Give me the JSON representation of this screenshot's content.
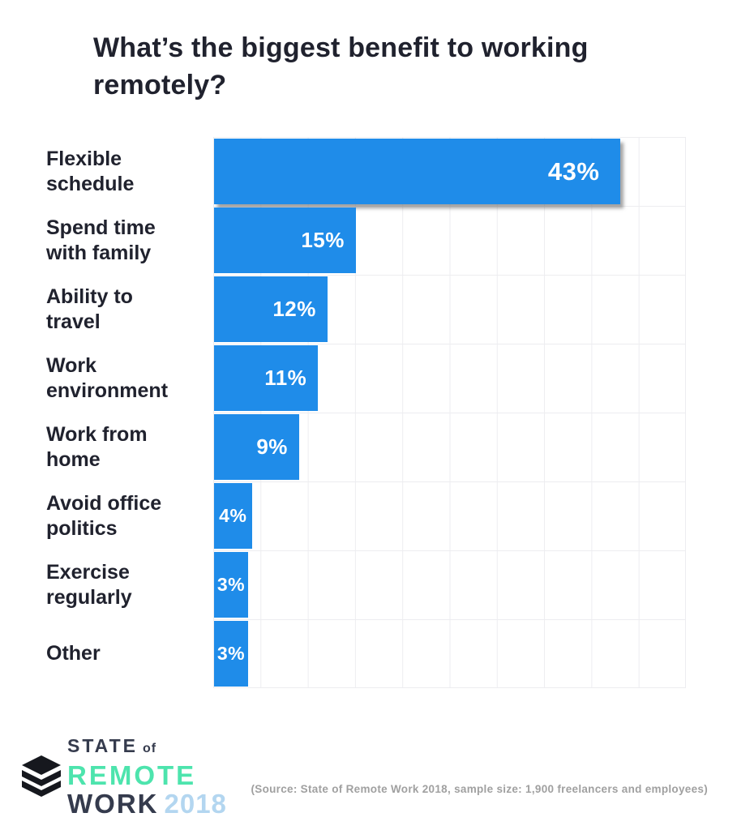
{
  "title": "What’s the biggest benefit to working remotely?",
  "chart_data": {
    "type": "bar",
    "orientation": "horizontal",
    "title": "What’s the biggest benefit to working remotely?",
    "categories": [
      "Flexible schedule",
      "Spend time with family",
      "Ability to travel",
      "Work environment",
      "Work from home",
      "Avoid office politics",
      "Exercise regularly",
      "Other"
    ],
    "category_lines": [
      [
        "Flexible",
        "schedule"
      ],
      [
        "Spend time",
        "with family"
      ],
      [
        "Ability to",
        "travel"
      ],
      [
        "Work",
        "environment"
      ],
      [
        "Work from",
        "home"
      ],
      [
        "Avoid office",
        "politics"
      ],
      [
        "Exercise",
        "regularly"
      ],
      [
        "Other"
      ]
    ],
    "values": [
      43,
      15,
      12,
      11,
      9,
      4,
      3,
      3
    ],
    "value_labels": [
      "43%",
      "15%",
      "12%",
      "11%",
      "9%",
      "4%",
      "3%",
      "3%"
    ],
    "unit": "%",
    "xlim": [
      0,
      50
    ],
    "grid_step": 5,
    "grid": true,
    "legend": false,
    "highlight_first_bar_shadow": true,
    "bar_color": "#1f8ce9"
  },
  "footer": {
    "logo": {
      "icon": "buffer-layers-icon",
      "state": "STATE",
      "of": "of",
      "remote": "REMOTE",
      "work": "WORK",
      "year": "2018"
    },
    "source": "(Source: State of Remote Work 2018, sample size: 1,900 freelancers and employees)"
  },
  "colors": {
    "bar": "#1f8ce9",
    "title_text": "#20222e",
    "category_text": "#20222e",
    "value_text": "#ffffff",
    "grid_line": "#ededf0",
    "logo_dark": "#353b4d",
    "logo_green": "#4de4ad",
    "logo_year_blue": "#b3d6f0",
    "source_text": "#a0a0a0",
    "background": "#ffffff"
  }
}
